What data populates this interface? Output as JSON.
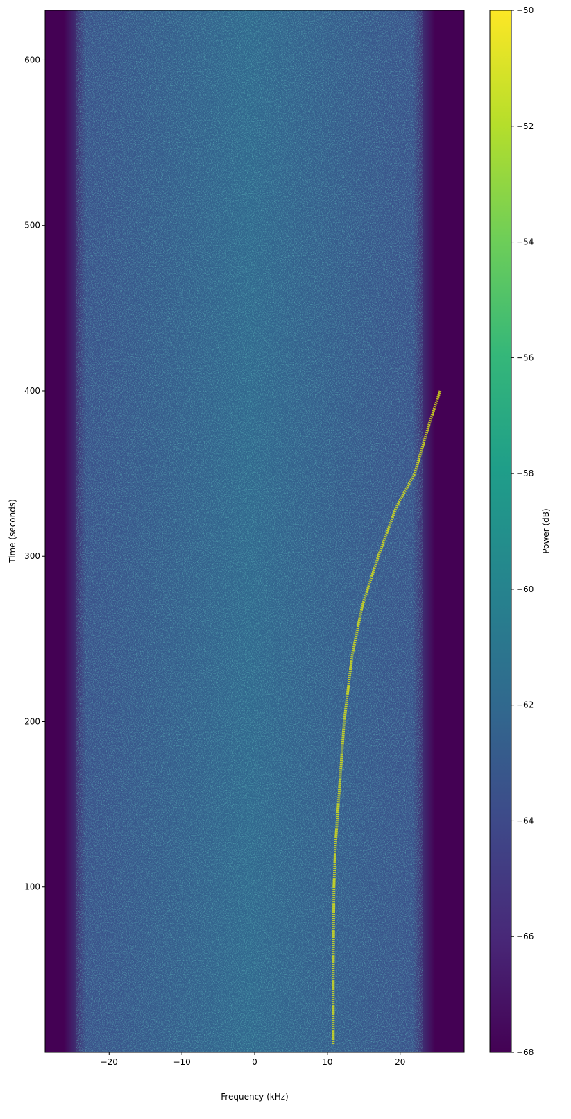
{
  "chart_data": {
    "type": "spectrogram",
    "xlabel": "Frequency (kHz)",
    "ylabel": "Time (seconds)",
    "colorbar_label": "Power (dB)",
    "xlim": [
      -28.8,
      28.8
    ],
    "xticks": [
      {
        "value": -20,
        "label": "−20"
      },
      {
        "value": -10,
        "label": "−10"
      },
      0,
      10,
      20
    ],
    "ylim": [
      0,
      630
    ],
    "yticks": [
      100,
      200,
      300,
      400,
      500,
      600
    ],
    "clim": [
      -68,
      -50
    ],
    "cticks": [
      {
        "value": -68,
        "label": "−68"
      },
      {
        "value": -66,
        "label": "−66"
      },
      {
        "value": -64,
        "label": "−64"
      },
      {
        "value": -62,
        "label": "−62"
      },
      {
        "value": -60,
        "label": "−60"
      },
      {
        "value": -58,
        "label": "−58"
      },
      {
        "value": -56,
        "label": "−56"
      },
      {
        "value": -54,
        "label": "−54"
      },
      {
        "value": -52,
        "label": "−52"
      },
      {
        "value": -50,
        "label": "−50"
      }
    ],
    "series": [
      {
        "color": "#d8e219",
        "x": [
          10.8,
          10.8,
          10.9,
          11.1,
          11.5,
          12.3,
          13.4,
          14.8,
          17.0,
          19.5,
          22.0,
          24.0,
          25.5
        ],
        "values": [
          5,
          50,
          100,
          125,
          150,
          200,
          240,
          270,
          300,
          330,
          350,
          380,
          400
        ]
      }
    ]
  }
}
